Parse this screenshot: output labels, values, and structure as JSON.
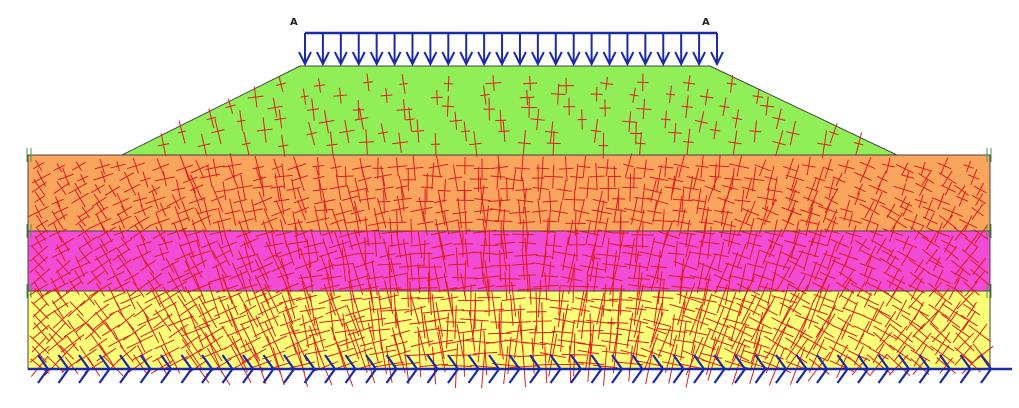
{
  "load_points": {
    "left": "A",
    "right": "A"
  },
  "colors": {
    "embankment": "#90ee56",
    "layer_1": "#f9a55e",
    "layer_2": "#f24cd6",
    "layer_3": "#faff78",
    "load_arrows": "#1c2aa8",
    "stress_crosses": "#dc1e1e",
    "fixity_marks": "#3a9a4a",
    "outline": "#444444"
  },
  "layers": [
    {
      "id": "embankment",
      "color_key": "embankment"
    },
    {
      "id": "layer-1",
      "color_key": "layer_1"
    },
    {
      "id": "layer-2",
      "color_key": "layer_2"
    },
    {
      "id": "layer-3",
      "color_key": "layer_3"
    }
  ],
  "icons": [
    "distributed-load-arrow-icon",
    "fixed-support-arrow-icon",
    "principal-stress-cross-icon"
  ]
}
